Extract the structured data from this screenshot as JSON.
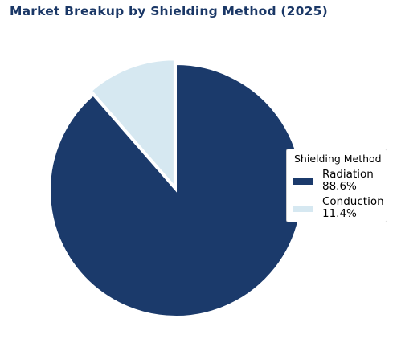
{
  "chart_data": {
    "type": "pie",
    "title": "Market Breakup by Shielding Method (2025)",
    "categories": [
      "Radiation",
      "Conduction"
    ],
    "values": [
      88.6,
      11.4
    ],
    "colors": [
      "#1b3a6b",
      "#d6e8f1"
    ],
    "exploded": [
      false,
      true
    ],
    "legend": {
      "title": "Shielding Method",
      "placement": "right",
      "entries": [
        {
          "name": "Radiation",
          "percent": "88.6%",
          "color": "#1b3a6b"
        },
        {
          "name": "Conduction",
          "percent": "11.4%",
          "color": "#d6e8f1"
        }
      ]
    }
  }
}
